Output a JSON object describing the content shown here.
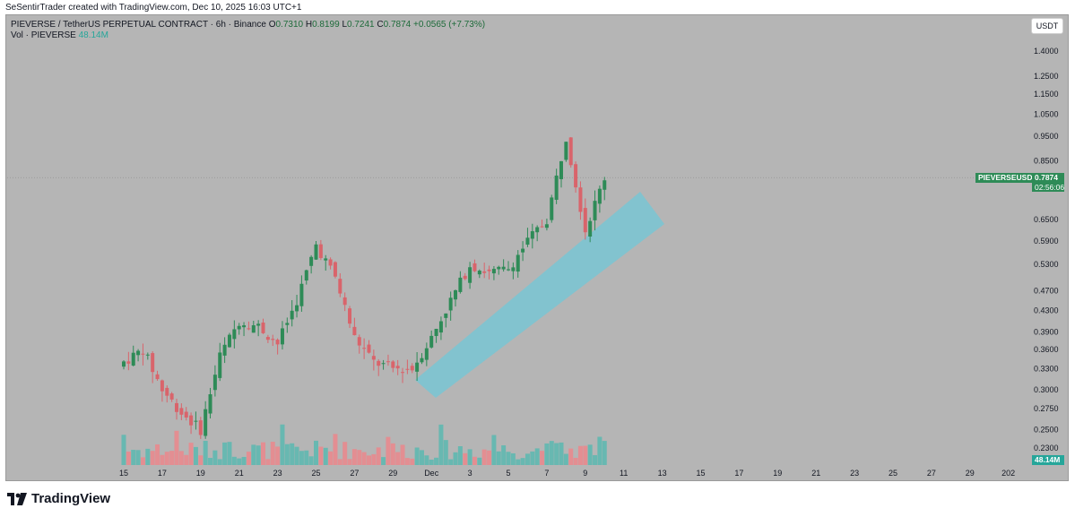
{
  "header": {
    "credit": "SeSentirTrader created with TradingView.com, Dec 10, 2025 16:03 UTC+1",
    "symbol_line": "PIEVERSE / TetherUS PERPETUAL CONTRACT · 6h · Binance",
    "o_label": "O",
    "o_value": "0.7310",
    "h_label": "H",
    "h_value": "0.8199",
    "l_label": "L",
    "l_value": "0.7241",
    "c_label": "C",
    "c_value": "0.7874",
    "change": "+0.0565 (+7.73%)",
    "vol_label": "Vol · PIEVERSE",
    "vol_value": "48.14M"
  },
  "currency_button": "USDT",
  "price_tag": {
    "symbol": "PIEVERSEUSDT.P",
    "price": "0.7874",
    "countdown": "02:56:06"
  },
  "volume_tag": "48.14M",
  "footer": {
    "brand": "TradingView"
  },
  "colors": {
    "up": "#2e8b57",
    "down": "#d9646b",
    "vol_up": "#5fb8b0",
    "vol_down": "#e88a8e",
    "channel": "#79c6d4",
    "background": "#b5b5b5"
  },
  "chart_data": {
    "type": "candlestick",
    "scale": "log",
    "y_ticks": [
      "1.4000",
      "1.2500",
      "1.1500",
      "1.0500",
      "0.9500",
      "0.8500",
      "0.7874",
      "0.6500",
      "0.5900",
      "0.5300",
      "0.4700",
      "0.4300",
      "0.3900",
      "0.3600",
      "0.3300",
      "0.3000",
      "0.2750",
      "0.2500",
      "0.2300"
    ],
    "x_ticks": [
      "15",
      "17",
      "19",
      "21",
      "23",
      "25",
      "27",
      "29",
      "Dec",
      "3",
      "5",
      "7",
      "9",
      "11",
      "13",
      "15",
      "17",
      "19",
      "21",
      "23",
      "25",
      "27",
      "29",
      "202"
    ],
    "last_price": 0.7874,
    "price_points": [
      [
        "Nov 15",
        0.34
      ],
      [
        "Nov 16",
        0.36
      ],
      [
        "Nov 17",
        0.3
      ],
      [
        "Nov 18",
        0.27
      ],
      [
        "Nov 19",
        0.25
      ],
      [
        "Nov 20",
        0.35
      ],
      [
        "Nov 21",
        0.41
      ],
      [
        "Nov 22",
        0.4
      ],
      [
        "Nov 23",
        0.37
      ],
      [
        "Nov 24",
        0.45
      ],
      [
        "Nov 25",
        0.58
      ],
      [
        "Nov 26",
        0.5
      ],
      [
        "Nov 27",
        0.38
      ],
      [
        "Nov 28",
        0.34
      ],
      [
        "Nov 29",
        0.33
      ],
      [
        "Nov 30",
        0.33
      ],
      [
        "Dec 1",
        0.38
      ],
      [
        "Dec 2",
        0.45
      ],
      [
        "Dec 3",
        0.53
      ],
      [
        "Dec 4",
        0.51
      ],
      [
        "Dec 5",
        0.52
      ],
      [
        "Dec 6",
        0.59
      ],
      [
        "Dec 7",
        0.65
      ],
      [
        "Dec 8",
        0.95
      ],
      [
        "Dec 9",
        0.62
      ],
      [
        "Dec 10",
        0.7874
      ]
    ],
    "volume_unit": "M",
    "last_volume": 48.14
  }
}
